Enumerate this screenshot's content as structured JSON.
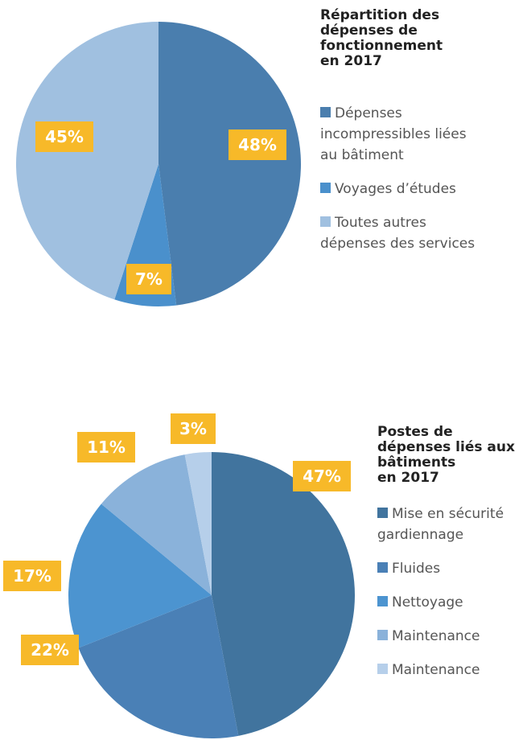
{
  "chart_data": [
    {
      "type": "pie",
      "title": "Répartition des\ndépenses de\nfonctionnement\nen 2017",
      "categories": [
        "Dépenses\nincompressibles liées\nau bâtiment",
        "Voyages d’études",
        "Toutes autres\ndépenses des services"
      ],
      "values": [
        48,
        7,
        45
      ],
      "value_labels": [
        "48%",
        "7%",
        "45%"
      ],
      "colors": [
        "#4a7eae",
        "#4a90cc",
        "#a0c0e0"
      ]
    },
    {
      "type": "pie",
      "title": "Postes de\ndépenses liés aux\nbâtiments\nen 2017",
      "categories": [
        "Mise en sécurité\ngardiennage",
        "Fluides",
        "Nettoyage",
        "Maintenance",
        "Maintenance"
      ],
      "values": [
        47,
        22,
        17,
        11,
        3
      ],
      "value_labels": [
        "47%",
        "22%",
        "17%",
        "11%",
        "3%"
      ],
      "colors": [
        "#41749e",
        "#4a80b6",
        "#4c94d0",
        "#8ab2da",
        "#b6cfea"
      ]
    }
  ]
}
